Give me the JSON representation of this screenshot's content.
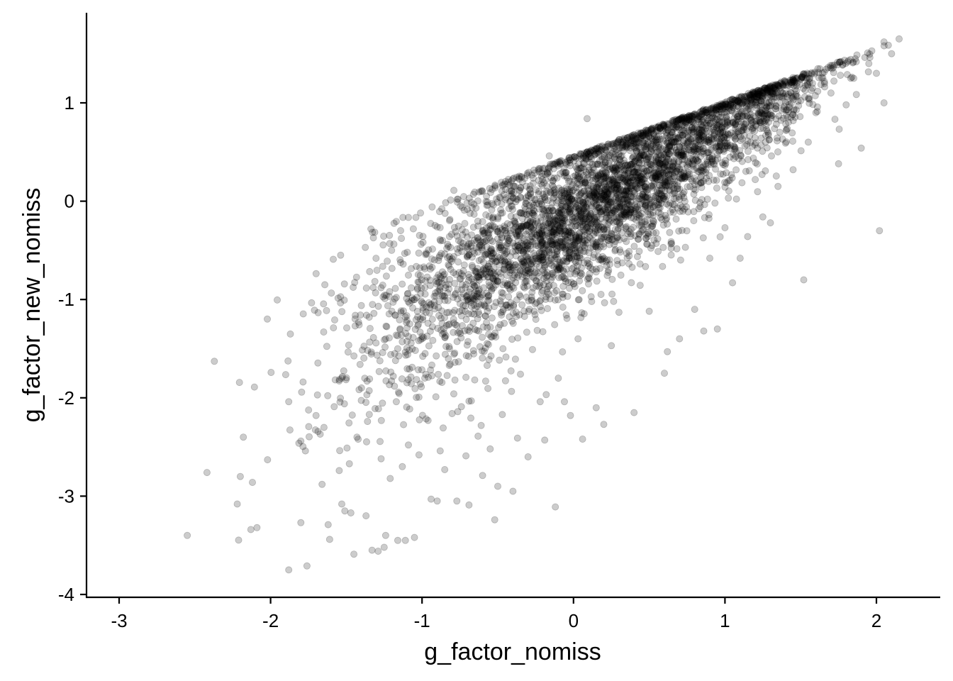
{
  "chart_data": {
    "type": "scatter",
    "xlabel": "g_factor_nomiss",
    "ylabel": "g_factor_new_nomiss",
    "xlim": [
      -3.2,
      2.4
    ],
    "ylim": [
      -4,
      1.9
    ],
    "x_ticks": [
      -3,
      -2,
      -1,
      0,
      1,
      2
    ],
    "y_ticks": [
      -4,
      -3,
      -2,
      -1,
      0,
      1
    ],
    "x_tick_labels": [
      "-3",
      "-2",
      "-1",
      "0",
      "1",
      "2"
    ],
    "y_tick_labels": [
      "-4",
      "-3",
      "-2",
      "-1",
      "0",
      "1"
    ],
    "point_color": "#000000",
    "point_alpha": 0.2,
    "grid": false,
    "legend": "none",
    "points": [
      [
        -2.55,
        -3.4
      ],
      [
        -2.42,
        -2.76
      ],
      [
        -2.22,
        -3.08
      ],
      [
        -2.2,
        -2.8
      ],
      [
        -2.18,
        -2.4
      ],
      [
        -2.13,
        -3.34
      ],
      [
        -2.12,
        -2.86
      ],
      [
        -2.09,
        -3.32
      ],
      [
        -2.02,
        -2.63
      ],
      [
        -1.88,
        -3.75
      ],
      [
        -1.88,
        -2.04
      ],
      [
        -1.8,
        -3.27
      ],
      [
        -1.77,
        -2.54
      ],
      [
        -1.76,
        -3.71
      ],
      [
        -1.7,
        -2.18
      ],
      [
        -1.66,
        -2.88
      ],
      [
        -1.62,
        -3.29
      ],
      [
        -1.61,
        -3.44
      ],
      [
        -1.58,
        -2.09
      ],
      [
        -1.53,
        -3.08
      ],
      [
        -1.51,
        -3.15
      ],
      [
        -1.48,
        -2.67
      ],
      [
        -1.47,
        -3.17
      ],
      [
        -1.45,
        -3.59
      ],
      [
        -1.43,
        -2.4
      ],
      [
        -1.4,
        -1.9
      ],
      [
        -1.37,
        -3.2
      ],
      [
        -1.36,
        -2.24
      ],
      [
        -1.33,
        -3.55
      ],
      [
        -1.31,
        -2.11
      ],
      [
        -1.29,
        -3.56
      ],
      [
        -1.27,
        -2.62
      ],
      [
        -1.26,
        -1.54
      ],
      [
        -1.25,
        -3.52
      ],
      [
        -1.24,
        -3.4
      ],
      [
        -1.23,
        -0.61
      ],
      [
        -1.21,
        -2.82
      ],
      [
        -1.19,
        -1.78
      ],
      [
        -1.17,
        -2.04
      ],
      [
        -1.16,
        -3.45
      ],
      [
        -1.13,
        -2.7
      ],
      [
        -1.11,
        -3.45
      ],
      [
        -1.09,
        -2.48
      ],
      [
        -1.05,
        -3.42
      ],
      [
        -1.02,
        -2.58
      ],
      [
        -1.01,
        -0.12
      ],
      [
        -0.98,
        -1.55
      ],
      [
        -0.96,
        -2.23
      ],
      [
        -0.94,
        -3.03
      ],
      [
        -0.9,
        -3.05
      ],
      [
        -0.88,
        -2.54
      ],
      [
        -0.85,
        -2.73
      ],
      [
        -0.82,
        -1.67
      ],
      [
        -0.79,
        0.11
      ],
      [
        -0.77,
        -3.05
      ],
      [
        -0.74,
        -2.09
      ],
      [
        -0.71,
        -2.59
      ],
      [
        -0.7,
        -0.48
      ],
      [
        -0.69,
        -3.09
      ],
      [
        -0.66,
        -1.52
      ],
      [
        -0.63,
        -2.39
      ],
      [
        -0.6,
        -2.79
      ],
      [
        -0.58,
        -1.83
      ],
      [
        -0.55,
        -2.52
      ],
      [
        -0.52,
        -3.24
      ],
      [
        -0.5,
        -2.9
      ],
      [
        -0.47,
        -2.17
      ],
      [
        -0.43,
        -0.65
      ],
      [
        -0.4,
        -2.95
      ],
      [
        -0.37,
        -2.41
      ],
      [
        -0.35,
        -1.76
      ],
      [
        -0.3,
        -2.6
      ],
      [
        -0.26,
        -1.12
      ],
      [
        -0.22,
        -2.04
      ],
      [
        -0.19,
        -2.43
      ],
      [
        -0.16,
        0.46
      ],
      [
        -0.14,
        -0.49
      ],
      [
        -0.12,
        -3.11
      ],
      [
        -0.1,
        -1.8
      ],
      [
        -0.06,
        -2.04
      ],
      [
        -0.04,
        -0.11
      ],
      [
        -0.02,
        -2.18
      ],
      [
        0.0,
        0.25
      ],
      [
        0.03,
        -1.4
      ],
      [
        0.06,
        -2.42
      ],
      [
        0.09,
        0.84
      ],
      [
        0.12,
        -1.02
      ],
      [
        0.15,
        -2.1
      ],
      [
        0.2,
        -2.27
      ],
      [
        0.25,
        -1.47
      ],
      [
        0.3,
        -1.13
      ],
      [
        0.35,
        -0.53
      ],
      [
        0.4,
        -2.15
      ],
      [
        0.43,
        0.6
      ],
      [
        0.5,
        -1.12
      ],
      [
        0.6,
        -1.75
      ],
      [
        0.62,
        -1.53
      ],
      [
        0.7,
        -1.4
      ],
      [
        0.8,
        -1.1
      ],
      [
        0.86,
        -1.32
      ],
      [
        0.9,
        -0.58
      ],
      [
        0.95,
        -1.3
      ],
      [
        1.0,
        -0.27
      ],
      [
        1.05,
        -0.83
      ],
      [
        1.1,
        -0.58
      ],
      [
        1.15,
        -0.36
      ],
      [
        1.2,
        0.22
      ],
      [
        1.25,
        -0.16
      ],
      [
        1.3,
        -0.22
      ],
      [
        1.35,
        0.15
      ],
      [
        1.4,
        0.59
      ],
      [
        1.45,
        0.32
      ],
      [
        1.52,
        -0.8
      ],
      [
        1.55,
        0.6
      ],
      [
        1.6,
        0.9
      ],
      [
        1.7,
        1.1
      ],
      [
        1.75,
        0.38
      ],
      [
        1.8,
        0.98
      ],
      [
        1.85,
        1.25
      ],
      [
        1.9,
        0.54
      ],
      [
        1.95,
        1.4
      ],
      [
        2.0,
        1.3
      ],
      [
        2.02,
        -0.3
      ],
      [
        2.05,
        1.62
      ],
      [
        2.05,
        1.0
      ],
      [
        2.1,
        1.5
      ],
      [
        2.15,
        1.65
      ]
    ],
    "point_cloud": {
      "shown_as": "several thousand semi-transparent points forming a dense band rising from lower-left to upper-right",
      "count": 4200,
      "x_mean": 0.2,
      "x_sd": 0.75,
      "slope": 0.9,
      "intercept": -0.15,
      "residual_sd_at_low_x": 0.62,
      "residual_sd_at_high_x": 0.2,
      "upper_envelope": "approx. y = 0.46 + 0.55 x near the top right, points approach it closely"
    }
  }
}
